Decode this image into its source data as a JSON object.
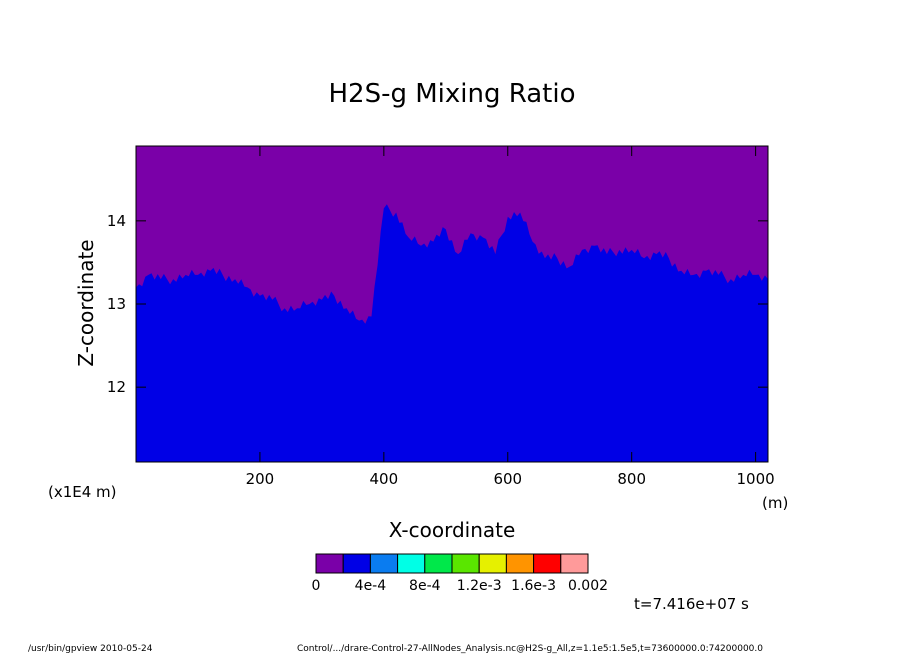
{
  "chart_data": {
    "type": "heatmap",
    "title": "H2S-g Mixing Ratio",
    "xlabel": "X-coordinate",
    "ylabel": "Z-coordinate",
    "x_unit": "(m)",
    "y_unit": "(x1E4 m)",
    "xlim": [
      0,
      1020
    ],
    "ylim": [
      11.1,
      14.9
    ],
    "x_ticks": [
      200,
      400,
      600,
      800,
      1000
    ],
    "y_ticks": [
      12,
      13,
      14
    ],
    "colorbar": {
      "colors": [
        "#7a00a8",
        "#0000e6",
        "#0a7cf0",
        "#00ffe6",
        "#00e84a",
        "#5ae600",
        "#e6f000",
        "#ff9400",
        "#ff0000",
        "#ff9a9a"
      ],
      "labels": [
        "0",
        "4e-4",
        "8e-4",
        "1.2e-3",
        "1.6e-3",
        "0.002"
      ]
    },
    "boundary_x": [
      0,
      20,
      40,
      60,
      80,
      100,
      120,
      140,
      160,
      180,
      200,
      220,
      240,
      260,
      280,
      300,
      320,
      340,
      360,
      380,
      400,
      420,
      440,
      460,
      480,
      500,
      520,
      540,
      560,
      580,
      600,
      620,
      640,
      660,
      680,
      700,
      720,
      740,
      760,
      780,
      800,
      820,
      840,
      860,
      880,
      900,
      920,
      940,
      960,
      980,
      1000,
      1020
    ],
    "boundary_z": [
      13.2,
      13.35,
      13.3,
      13.3,
      13.35,
      13.35,
      13.4,
      13.35,
      13.3,
      13.2,
      13.1,
      13.05,
      12.95,
      12.95,
      13.0,
      13.05,
      13.1,
      12.95,
      12.8,
      12.85,
      14.15,
      14.1,
      13.8,
      13.7,
      13.75,
      13.9,
      13.6,
      13.85,
      13.8,
      13.6,
      14.05,
      14.1,
      13.75,
      13.55,
      13.55,
      13.45,
      13.65,
      13.7,
      13.6,
      13.65,
      13.65,
      13.55,
      13.6,
      13.55,
      13.4,
      13.35,
      13.4,
      13.35,
      13.3,
      13.35,
      13.35,
      13.3
    ],
    "time_label": "t=7.416e+07 s"
  },
  "footer": {
    "left": "/usr/bin/gpview  2010-05-24",
    "right": "Control/.../drare-Control-27-AllNodes_Analysis.nc@H2S-g_All,z=1.1e5:1.5e5,t=73600000.0:74200000.0"
  }
}
